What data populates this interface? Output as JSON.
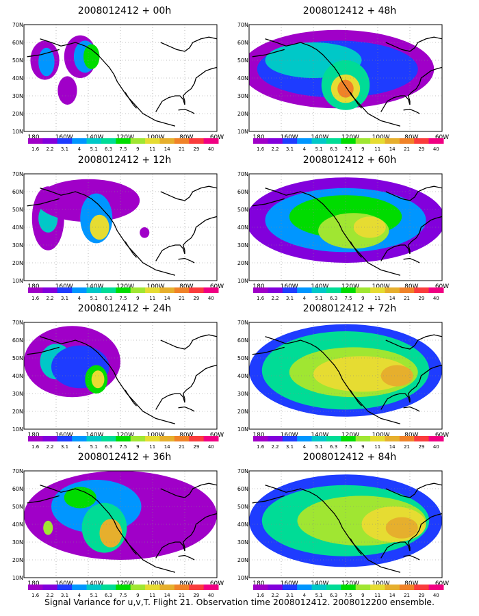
{
  "figure": {
    "caption": "Signal Variance for u,v,T. Flight 21. Observation time 2008012412. 2008012200 ensemble."
  },
  "map_axes": {
    "lat_labels": [
      "70N",
      "60N",
      "50N",
      "40N",
      "30N",
      "20N",
      "10N"
    ],
    "lon_labels": [
      "180",
      "160W",
      "140W",
      "120W",
      "100W",
      "80W",
      "60W"
    ]
  },
  "colorbar": {
    "levels": [
      "1.6",
      "2.2",
      "3.1",
      "4",
      "5.1",
      "6.3",
      "7.5",
      "9",
      "11",
      "14",
      "21",
      "29",
      "40"
    ],
    "colors": [
      "#a000c8",
      "#8200dc",
      "#1e3cff",
      "#0096ff",
      "#00c8c8",
      "#00dc96",
      "#00dc00",
      "#a0e632",
      "#e6dc32",
      "#e6af2d",
      "#f08228",
      "#fa3c3c",
      "#f00082"
    ]
  },
  "panels": [
    {
      "title": "2008012412 + 00h",
      "lead_hours": 0
    },
    {
      "title": "2008012412 + 48h",
      "lead_hours": 48
    },
    {
      "title": "2008012412 + 12h",
      "lead_hours": 12
    },
    {
      "title": "2008012412 + 60h",
      "lead_hours": 60
    },
    {
      "title": "2008012412 + 24h",
      "lead_hours": 24
    },
    {
      "title": "2008012412 + 72h",
      "lead_hours": 72
    },
    {
      "title": "2008012412 + 36h",
      "lead_hours": 36
    },
    {
      "title": "2008012412 + 84h",
      "lead_hours": 84
    }
  ]
}
